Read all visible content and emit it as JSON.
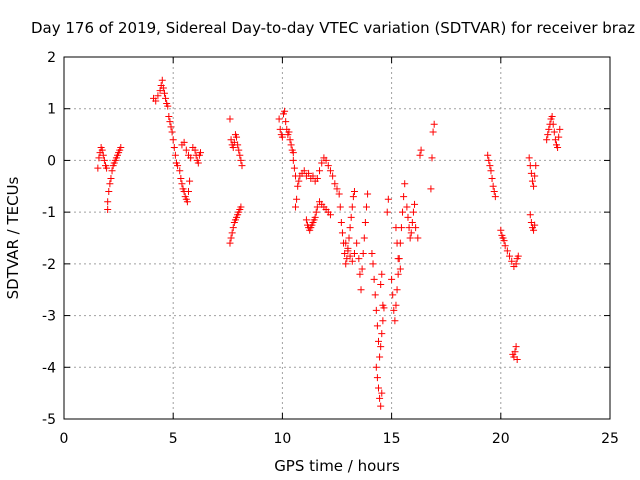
{
  "chart_data": {
    "type": "scatter",
    "title": "Day 176 of 2019, Sidereal Day-to-day VTEC variation (SDTVAR) for receiver braz",
    "xlabel": "GPS time / hours",
    "ylabel": "SDTVAR / TECUs",
    "xlim": [
      0,
      25
    ],
    "ylim": [
      -5,
      2
    ],
    "xticks": [
      0,
      5,
      10,
      15,
      20,
      25
    ],
    "yticks": [
      -5,
      -4,
      -3,
      -2,
      -1,
      0,
      1,
      2
    ],
    "xtick_labels": [
      "0",
      "5",
      "10",
      "15",
      "20",
      "25"
    ],
    "ytick_labels": [
      "-5",
      "-4",
      "-3",
      "-2",
      "-1",
      "0",
      "1",
      "2"
    ],
    "grid": true,
    "marker": "plus",
    "color": "#ff0000",
    "series": [
      {
        "name": "SDTVAR",
        "points": [
          [
            1.55,
            -0.15
          ],
          [
            1.6,
            0.05
          ],
          [
            1.65,
            0.15
          ],
          [
            1.7,
            0.25
          ],
          [
            1.75,
            0.2
          ],
          [
            1.8,
            0.1
          ],
          [
            1.85,
            0.0
          ],
          [
            1.9,
            -0.1
          ],
          [
            1.95,
            -0.15
          ],
          [
            2.0,
            -0.95
          ],
          [
            2.0,
            -0.8
          ],
          [
            2.05,
            -0.6
          ],
          [
            2.1,
            -0.45
          ],
          [
            2.15,
            -0.35
          ],
          [
            2.2,
            -0.2
          ],
          [
            2.25,
            -0.1
          ],
          [
            2.3,
            -0.05
          ],
          [
            2.35,
            0.0
          ],
          [
            2.4,
            0.05
          ],
          [
            2.45,
            0.1
          ],
          [
            2.5,
            0.15
          ],
          [
            2.55,
            0.2
          ],
          [
            2.6,
            0.25
          ],
          [
            4.1,
            1.2
          ],
          [
            4.2,
            1.15
          ],
          [
            4.3,
            1.25
          ],
          [
            4.4,
            1.35
          ],
          [
            4.45,
            1.45
          ],
          [
            4.5,
            1.55
          ],
          [
            4.55,
            1.4
          ],
          [
            4.6,
            1.3
          ],
          [
            4.65,
            1.2
          ],
          [
            4.7,
            1.1
          ],
          [
            4.75,
            1.05
          ],
          [
            4.8,
            0.85
          ],
          [
            4.85,
            0.75
          ],
          [
            4.9,
            0.65
          ],
          [
            4.95,
            0.55
          ],
          [
            5.0,
            0.4
          ],
          [
            5.05,
            0.25
          ],
          [
            5.1,
            0.1
          ],
          [
            5.15,
            -0.05
          ],
          [
            5.2,
            -0.1
          ],
          [
            5.3,
            -0.2
          ],
          [
            5.35,
            -0.35
          ],
          [
            5.4,
            -0.45
          ],
          [
            5.45,
            -0.55
          ],
          [
            5.5,
            -0.6
          ],
          [
            5.55,
            -0.7
          ],
          [
            5.6,
            -0.75
          ],
          [
            5.65,
            -0.8
          ],
          [
            5.7,
            -0.6
          ],
          [
            5.75,
            -0.4
          ],
          [
            5.4,
            0.3
          ],
          [
            5.5,
            0.35
          ],
          [
            5.6,
            0.2
          ],
          [
            5.7,
            0.1
          ],
          [
            5.8,
            0.05
          ],
          [
            5.9,
            0.25
          ],
          [
            6.0,
            0.2
          ],
          [
            6.05,
            0.1
          ],
          [
            6.1,
            0.0
          ],
          [
            6.15,
            -0.05
          ],
          [
            6.2,
            0.1
          ],
          [
            6.25,
            0.15
          ],
          [
            7.6,
            0.8
          ],
          [
            7.65,
            0.4
          ],
          [
            7.7,
            0.3
          ],
          [
            7.75,
            0.25
          ],
          [
            7.8,
            0.35
          ],
          [
            7.85,
            0.5
          ],
          [
            7.9,
            0.45
          ],
          [
            7.95,
            0.3
          ],
          [
            8.0,
            0.2
          ],
          [
            8.05,
            0.1
          ],
          [
            8.1,
            0.0
          ],
          [
            8.15,
            -0.1
          ],
          [
            7.6,
            -1.6
          ],
          [
            7.65,
            -1.5
          ],
          [
            7.7,
            -1.4
          ],
          [
            7.75,
            -1.3
          ],
          [
            7.8,
            -1.2
          ],
          [
            7.85,
            -1.15
          ],
          [
            7.9,
            -1.1
          ],
          [
            7.95,
            -1.05
          ],
          [
            8.0,
            -1.0
          ],
          [
            8.05,
            -0.95
          ],
          [
            8.1,
            -0.9
          ],
          [
            9.85,
            0.8
          ],
          [
            9.9,
            0.6
          ],
          [
            9.95,
            0.5
          ],
          [
            10.0,
            0.45
          ],
          [
            10.05,
            0.9
          ],
          [
            10.1,
            0.95
          ],
          [
            10.15,
            0.75
          ],
          [
            10.2,
            0.6
          ],
          [
            10.25,
            0.5
          ],
          [
            10.3,
            0.55
          ],
          [
            10.35,
            0.4
          ],
          [
            10.4,
            0.3
          ],
          [
            10.45,
            0.2
          ],
          [
            10.5,
            0.15
          ],
          [
            10.5,
            0.0
          ],
          [
            10.55,
            -0.15
          ],
          [
            10.6,
            -0.3
          ],
          [
            10.6,
            -0.9
          ],
          [
            10.65,
            -0.75
          ],
          [
            10.7,
            -0.5
          ],
          [
            10.75,
            -0.4
          ],
          [
            10.8,
            -0.3
          ],
          [
            10.9,
            -0.25
          ],
          [
            11.0,
            -0.2
          ],
          [
            11.1,
            -0.3
          ],
          [
            11.2,
            -0.25
          ],
          [
            11.3,
            -0.35
          ],
          [
            11.4,
            -0.3
          ],
          [
            11.5,
            -0.4
          ],
          [
            11.6,
            -0.35
          ],
          [
            11.7,
            -0.2
          ],
          [
            11.8,
            -0.05
          ],
          [
            11.9,
            0.05
          ],
          [
            12.0,
            0.0
          ],
          [
            12.1,
            -0.1
          ],
          [
            12.2,
            -0.2
          ],
          [
            12.3,
            -0.3
          ],
          [
            12.4,
            -0.45
          ],
          [
            12.5,
            -0.55
          ],
          [
            11.1,
            -1.15
          ],
          [
            11.15,
            -1.25
          ],
          [
            11.2,
            -1.3
          ],
          [
            11.25,
            -1.35
          ],
          [
            11.3,
            -1.3
          ],
          [
            11.35,
            -1.25
          ],
          [
            11.4,
            -1.2
          ],
          [
            11.45,
            -1.15
          ],
          [
            11.5,
            -1.1
          ],
          [
            11.55,
            -1.0
          ],
          [
            11.6,
            -0.9
          ],
          [
            11.7,
            -0.8
          ],
          [
            11.8,
            -0.85
          ],
          [
            11.9,
            -0.9
          ],
          [
            12.0,
            -0.95
          ],
          [
            12.1,
            -1.0
          ],
          [
            12.2,
            -1.05
          ],
          [
            12.6,
            -0.65
          ],
          [
            12.65,
            -0.9
          ],
          [
            12.7,
            -1.2
          ],
          [
            12.75,
            -1.4
          ],
          [
            12.8,
            -1.6
          ],
          [
            12.85,
            -1.8
          ],
          [
            12.9,
            -2.0
          ],
          [
            12.95,
            -1.9
          ],
          [
            13.0,
            -1.7
          ],
          [
            13.05,
            -1.5
          ],
          [
            13.1,
            -1.3
          ],
          [
            13.15,
            -1.1
          ],
          [
            13.2,
            -0.9
          ],
          [
            13.25,
            -0.7
          ],
          [
            13.3,
            -0.6
          ],
          [
            12.9,
            -1.6
          ],
          [
            13.0,
            -1.75
          ],
          [
            13.1,
            -1.85
          ],
          [
            13.2,
            -1.95
          ],
          [
            13.3,
            -1.8
          ],
          [
            13.4,
            -1.6
          ],
          [
            13.5,
            -1.9
          ],
          [
            13.55,
            -2.2
          ],
          [
            13.6,
            -2.5
          ],
          [
            13.65,
            -2.1
          ],
          [
            13.7,
            -1.8
          ],
          [
            13.75,
            -1.5
          ],
          [
            13.8,
            -1.2
          ],
          [
            13.85,
            -0.9
          ],
          [
            13.9,
            -0.65
          ],
          [
            14.1,
            -1.8
          ],
          [
            14.15,
            -2.0
          ],
          [
            14.2,
            -2.3
          ],
          [
            14.25,
            -2.6
          ],
          [
            14.3,
            -2.9
          ],
          [
            14.35,
            -3.2
          ],
          [
            14.4,
            -3.5
          ],
          [
            14.45,
            -3.8
          ],
          [
            14.5,
            -2.4
          ],
          [
            14.55,
            -2.2
          ],
          [
            14.6,
            -2.8
          ],
          [
            14.3,
            -4.0
          ],
          [
            14.35,
            -4.2
          ],
          [
            14.4,
            -4.4
          ],
          [
            14.45,
            -4.6
          ],
          [
            14.5,
            -4.75
          ],
          [
            14.55,
            -4.5
          ],
          [
            14.5,
            -3.6
          ],
          [
            14.55,
            -3.35
          ],
          [
            14.6,
            -3.1
          ],
          [
            14.65,
            -2.85
          ],
          [
            14.8,
            -1.0
          ],
          [
            14.85,
            -0.75
          ],
          [
            15.0,
            -2.3
          ],
          [
            15.05,
            -2.6
          ],
          [
            15.1,
            -2.9
          ],
          [
            15.15,
            -3.1
          ],
          [
            15.2,
            -2.8
          ],
          [
            15.25,
            -2.5
          ],
          [
            15.3,
            -2.2
          ],
          [
            15.35,
            -1.9
          ],
          [
            15.4,
            -1.6
          ],
          [
            15.45,
            -1.3
          ],
          [
            15.5,
            -1.0
          ],
          [
            15.55,
            -0.7
          ],
          [
            15.6,
            -0.45
          ],
          [
            15.2,
            -1.3
          ],
          [
            15.25,
            -1.6
          ],
          [
            15.3,
            -1.9
          ],
          [
            15.4,
            -2.1
          ],
          [
            15.7,
            -0.9
          ],
          [
            15.75,
            -1.1
          ],
          [
            15.8,
            -1.3
          ],
          [
            15.85,
            -1.5
          ],
          [
            15.9,
            -1.4
          ],
          [
            15.95,
            -1.2
          ],
          [
            16.0,
            -1.0
          ],
          [
            16.05,
            -0.85
          ],
          [
            16.1,
            -1.3
          ],
          [
            16.2,
            -1.5
          ],
          [
            16.3,
            0.1
          ],
          [
            16.35,
            0.2
          ],
          [
            16.8,
            -0.55
          ],
          [
            16.85,
            0.05
          ],
          [
            16.9,
            0.55
          ],
          [
            16.95,
            0.7
          ],
          [
            19.4,
            0.1
          ],
          [
            19.45,
            0.0
          ],
          [
            19.5,
            -0.1
          ],
          [
            19.55,
            -0.2
          ],
          [
            19.6,
            -0.35
          ],
          [
            19.65,
            -0.5
          ],
          [
            19.7,
            -0.6
          ],
          [
            19.75,
            -0.7
          ],
          [
            20.0,
            -1.35
          ],
          [
            20.05,
            -1.45
          ],
          [
            20.1,
            -1.5
          ],
          [
            20.15,
            -1.55
          ],
          [
            20.2,
            -1.65
          ],
          [
            20.3,
            -1.75
          ],
          [
            20.4,
            -1.85
          ],
          [
            20.5,
            -1.95
          ],
          [
            20.6,
            -2.05
          ],
          [
            20.7,
            -2.0
          ],
          [
            20.75,
            -1.9
          ],
          [
            20.8,
            -1.85
          ],
          [
            20.55,
            -3.75
          ],
          [
            20.6,
            -3.8
          ],
          [
            20.65,
            -3.7
          ],
          [
            20.7,
            -3.6
          ],
          [
            20.75,
            -3.85
          ],
          [
            21.3,
            0.05
          ],
          [
            21.35,
            -0.1
          ],
          [
            21.4,
            -0.25
          ],
          [
            21.45,
            -0.4
          ],
          [
            21.5,
            -0.5
          ],
          [
            21.55,
            -0.3
          ],
          [
            21.6,
            -0.1
          ],
          [
            21.35,
            -1.05
          ],
          [
            21.4,
            -1.2
          ],
          [
            21.45,
            -1.3
          ],
          [
            21.5,
            -1.35
          ],
          [
            21.55,
            -1.25
          ],
          [
            22.1,
            0.4
          ],
          [
            22.15,
            0.5
          ],
          [
            22.2,
            0.6
          ],
          [
            22.25,
            0.7
          ],
          [
            22.3,
            0.8
          ],
          [
            22.35,
            0.85
          ],
          [
            22.4,
            0.7
          ],
          [
            22.45,
            0.55
          ],
          [
            22.5,
            0.4
          ],
          [
            22.55,
            0.3
          ],
          [
            22.6,
            0.25
          ],
          [
            22.65,
            0.45
          ],
          [
            22.7,
            0.6
          ]
        ]
      }
    ]
  }
}
